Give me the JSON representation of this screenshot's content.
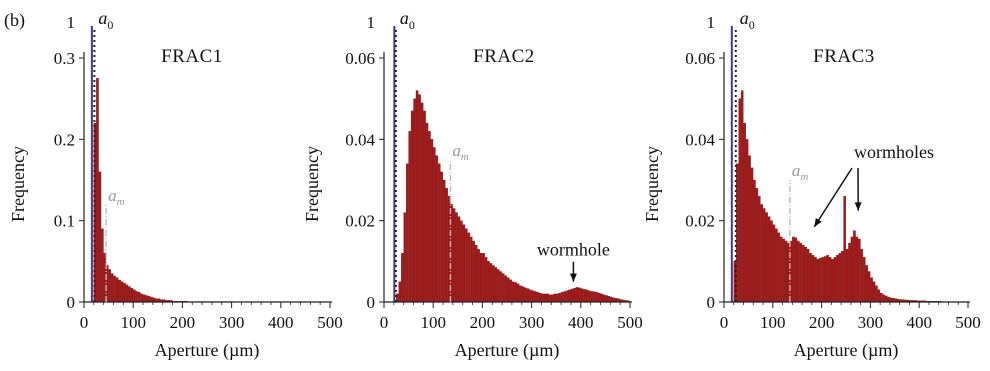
{
  "panel_label": "(b)",
  "chart_data": [
    {
      "type": "bar",
      "title": "FRAC1",
      "xlabel": "Aperture (µm)",
      "ylabel": "Frequency",
      "xlim": [
        0,
        500
      ],
      "ylim": [
        0,
        0.3
      ],
      "xticks": [
        "0",
        "100",
        "200",
        "300",
        "400",
        "500"
      ],
      "yticks": [
        "0",
        "0.1",
        "0.2",
        "0.3"
      ],
      "top_label": "1",
      "bin_width": 5,
      "a0": 15,
      "a0_label": "a",
      "a0_sub": "0",
      "am": 45,
      "am_label": "a",
      "am_sub": "m",
      "annotations": [],
      "x": [
        15,
        20,
        25,
        30,
        35,
        40,
        45,
        50,
        55,
        60,
        65,
        70,
        75,
        80,
        85,
        90,
        95,
        100,
        105,
        110,
        115,
        120,
        125,
        130,
        135,
        140,
        145,
        150,
        155,
        160,
        165,
        170,
        175,
        180,
        185,
        190,
        195,
        200,
        205,
        210,
        215,
        220,
        225,
        230,
        235,
        240,
        245,
        250,
        255,
        260,
        265,
        270,
        275,
        280,
        285,
        290,
        295,
        300
      ],
      "values": [
        1.0,
        0.22,
        0.275,
        0.16,
        0.09,
        0.06,
        0.045,
        0.04,
        0.035,
        0.032,
        0.03,
        0.027,
        0.025,
        0.023,
        0.021,
        0.019,
        0.017,
        0.015,
        0.013,
        0.012,
        0.01,
        0.009,
        0.008,
        0.007,
        0.006,
        0.005,
        0.004,
        0.004,
        0.003,
        0.003,
        0.002,
        0.002,
        0.002,
        0.001,
        0.001,
        0.001,
        0.001,
        0.001,
        0.001,
        0.0005,
        0.0005,
        0.0005,
        0.0005,
        0.0005,
        0.0005,
        0.0005,
        0.0005,
        0.0005,
        0.0005,
        0.0005,
        0.0005,
        0.0005,
        0.0005,
        0.0005,
        0.0005,
        0.0005,
        0.0005,
        0.0005
      ]
    },
    {
      "type": "bar",
      "title": "FRAC2",
      "xlabel": "Aperture (µm)",
      "ylabel": "Frequency",
      "xlim": [
        0,
        500
      ],
      "ylim": [
        0,
        0.06
      ],
      "xticks": [
        "0",
        "100",
        "200",
        "300",
        "400",
        "500"
      ],
      "yticks": [
        "0",
        "0.02",
        "0.04",
        "0.06"
      ],
      "top_label": "1",
      "bin_width": 5,
      "a0": 18,
      "a0_label": "a",
      "a0_sub": "0",
      "am": 135,
      "am_label": "a",
      "am_sub": "m",
      "annotations": [
        {
          "text": "wormhole",
          "target_x": 385,
          "target_y": 0.004
        }
      ],
      "x": [
        20,
        25,
        30,
        35,
        40,
        45,
        50,
        55,
        60,
        65,
        70,
        75,
        80,
        85,
        90,
        95,
        100,
        105,
        110,
        115,
        120,
        125,
        130,
        135,
        140,
        145,
        150,
        155,
        160,
        165,
        170,
        175,
        180,
        185,
        190,
        195,
        200,
        205,
        210,
        215,
        220,
        225,
        230,
        235,
        240,
        245,
        250,
        255,
        260,
        265,
        270,
        275,
        280,
        285,
        290,
        295,
        300,
        305,
        310,
        315,
        320,
        325,
        330,
        335,
        340,
        345,
        350,
        355,
        360,
        365,
        370,
        375,
        380,
        385,
        390,
        395,
        400,
        405,
        410,
        415,
        420,
        425,
        430,
        435,
        440,
        445,
        450,
        455,
        460,
        465,
        470,
        475,
        480,
        485,
        490,
        495
      ],
      "values": [
        1.0,
        0.002,
        0.005,
        0.012,
        0.022,
        0.034,
        0.042,
        0.047,
        0.05,
        0.052,
        0.051,
        0.049,
        0.047,
        0.044,
        0.042,
        0.04,
        0.038,
        0.036,
        0.034,
        0.032,
        0.03,
        0.028,
        0.026,
        0.024,
        0.023,
        0.022,
        0.021,
        0.02,
        0.019,
        0.018,
        0.017,
        0.016,
        0.015,
        0.014,
        0.013,
        0.012,
        0.012,
        0.011,
        0.01,
        0.0095,
        0.009,
        0.0085,
        0.008,
        0.0075,
        0.007,
        0.0065,
        0.006,
        0.0055,
        0.005,
        0.0048,
        0.0045,
        0.004,
        0.0038,
        0.0035,
        0.0033,
        0.003,
        0.0028,
        0.0026,
        0.0024,
        0.0022,
        0.002,
        0.002,
        0.002,
        0.0018,
        0.0018,
        0.002,
        0.002,
        0.0022,
        0.0024,
        0.0026,
        0.0028,
        0.003,
        0.0032,
        0.0034,
        0.0036,
        0.0035,
        0.0033,
        0.0031,
        0.003,
        0.0028,
        0.0026,
        0.0025,
        0.0024,
        0.0022,
        0.002,
        0.0018,
        0.0016,
        0.0014,
        0.0012,
        0.001,
        0.0009,
        0.0008,
        0.0006,
        0.0005,
        0.0004,
        0.0003
      ]
    },
    {
      "type": "bar",
      "title": "FRAC3",
      "xlabel": "Aperture (µm)",
      "ylabel": "Frequency",
      "xlim": [
        0,
        500
      ],
      "ylim": [
        0,
        0.06
      ],
      "xticks": [
        "0",
        "100",
        "200",
        "300",
        "400",
        "500"
      ],
      "yticks": [
        "0",
        "0.02",
        "0.04",
        "0.06"
      ],
      "top_label": "1",
      "bin_width": 5,
      "a0": 18,
      "a0_label": "a",
      "a0_sub": "0",
      "am": 135,
      "am_label": "a",
      "am_sub": "m",
      "annotations": [
        {
          "text": "wormholes",
          "targets": [
            {
              "x": 185,
              "y": 0.017
            },
            {
              "x": 275,
              "y": 0.021
            }
          ]
        }
      ],
      "x": [
        15,
        20,
        25,
        30,
        35,
        40,
        45,
        50,
        55,
        60,
        65,
        70,
        75,
        80,
        85,
        90,
        95,
        100,
        105,
        110,
        115,
        120,
        125,
        130,
        135,
        140,
        145,
        150,
        155,
        160,
        165,
        170,
        175,
        180,
        185,
        190,
        195,
        200,
        205,
        210,
        215,
        220,
        225,
        230,
        235,
        240,
        245,
        250,
        255,
        260,
        265,
        270,
        275,
        280,
        285,
        290,
        295,
        300,
        305,
        310,
        315,
        320,
        325,
        330,
        335,
        340,
        345,
        350,
        355,
        360,
        365,
        370,
        375,
        380,
        385,
        390,
        395,
        400,
        405,
        410,
        415,
        420,
        425,
        430,
        435,
        440,
        445,
        450
      ],
      "values": [
        1.0,
        0.01,
        0.034,
        0.05,
        0.052,
        0.044,
        0.04,
        0.036,
        0.033,
        0.03,
        0.028,
        0.026,
        0.024,
        0.023,
        0.022,
        0.021,
        0.02,
        0.019,
        0.018,
        0.017,
        0.016,
        0.0155,
        0.015,
        0.0145,
        0.015,
        0.016,
        0.0158,
        0.015,
        0.0145,
        0.014,
        0.0135,
        0.013,
        0.012,
        0.0115,
        0.011,
        0.0105,
        0.0108,
        0.011,
        0.0112,
        0.0115,
        0.011,
        0.0105,
        0.011,
        0.0115,
        0.012,
        0.0125,
        0.026,
        0.013,
        0.0145,
        0.016,
        0.0175,
        0.016,
        0.0155,
        0.013,
        0.011,
        0.009,
        0.0075,
        0.006,
        0.005,
        0.004,
        0.003,
        0.0022,
        0.0018,
        0.0015,
        0.0012,
        0.001,
        0.0009,
        0.0008,
        0.0007,
        0.0006,
        0.0006,
        0.0005,
        0.0005,
        0.0004,
        0.0004,
        0.0004,
        0.0003,
        0.0003,
        0.0003,
        0.0003,
        0.0002,
        0.0002,
        0.0002,
        0.0002,
        0.0002,
        0.0002,
        0.0001,
        0.0001
      ]
    }
  ]
}
